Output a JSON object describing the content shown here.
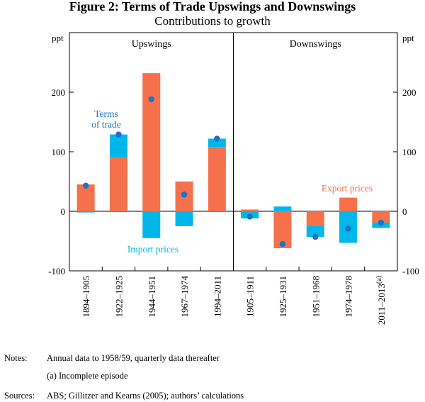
{
  "figure": {
    "title": "Figure 2: Terms of Trade Upswings and Downswings",
    "subtitle": "Contributions to growth"
  },
  "notes": {
    "label": "Notes:",
    "line1": "Annual data to 1958/59, quarterly data thereafter",
    "line2": "(a) Incomplete episode",
    "sources_label": "Sources:",
    "sources": "ABS; Gillitzer and Kearns (2005); authors’ calculations"
  },
  "chart_data": {
    "type": "bar",
    "stacked": true,
    "title": "Figure 2: Terms of Trade Upswings and Downswings",
    "subtitle": "Contributions to growth",
    "ylabel_left": "ppt",
    "ylabel_right": "ppt",
    "ylim": [
      -100,
      300
    ],
    "yticks": [
      -100,
      0,
      100,
      200
    ],
    "grid": false,
    "panels": [
      {
        "title": "Upswings",
        "categories": [
          "1894–1905",
          "1922–1925",
          "1944–1951",
          "1967–1974",
          "1994–2011"
        ]
      },
      {
        "title": "Downswings",
        "categories": [
          "1905–1911",
          "1925–1931",
          "1951–1968",
          "1974–1978",
          "2011–2013"
        ]
      }
    ],
    "footnote_marker": "(a)",
    "footnote_category_index": 9,
    "categories": [
      "1894–1905",
      "1922–1925",
      "1944–1951",
      "1967–1974",
      "1994–2011",
      "1905–1911",
      "1925–1931",
      "1951–1968",
      "1974–1978",
      "2011–2013"
    ],
    "series": [
      {
        "name": "Export prices",
        "kind": "bar",
        "color": "#f4714b",
        "values": [
          45,
          90,
          232,
          50,
          108,
          3,
          -62,
          -25,
          23,
          -19
        ]
      },
      {
        "name": "Import prices",
        "kind": "bar",
        "color": "#00b7eb",
        "values": [
          -2,
          39,
          -45,
          -25,
          14,
          -12,
          8,
          -18,
          -53,
          -9
        ]
      },
      {
        "name": "Terms of trade",
        "kind": "point",
        "color": "#1a73c6",
        "values": [
          43,
          129,
          188,
          28,
          122,
          -9,
          -55,
          -43,
          -29,
          -19
        ]
      }
    ],
    "annotations": [
      {
        "text_lines": [
          "Terms",
          "of trade"
        ],
        "series": "Terms of trade",
        "color": "#1a73c6"
      },
      {
        "text_lines": [
          "Import prices"
        ],
        "series": "Import prices",
        "color": "#00b7eb"
      },
      {
        "text_lines": [
          "Export prices"
        ],
        "series": "Export prices",
        "color": "#f4714b"
      }
    ]
  }
}
